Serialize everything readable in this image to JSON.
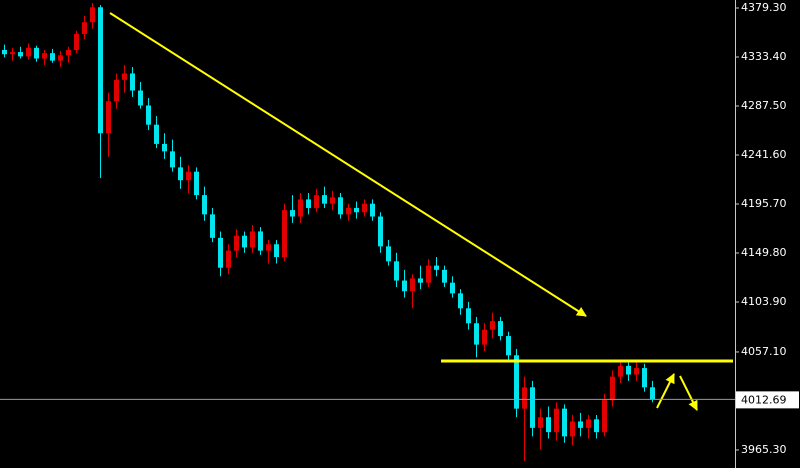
{
  "chart_data": {
    "type": "candlestick",
    "open": [
      4340,
      4336,
      4338,
      4334,
      4342,
      4332,
      4337,
      4330,
      4335,
      4340,
      4355,
      4366,
      4380,
      4262,
      4292,
      4312,
      4318,
      4302,
      4288,
      4270,
      4252,
      4245,
      4230,
      4218,
      4226,
      4204,
      4186,
      4164,
      4136,
      4152,
      4166,
      4155,
      4170,
      4152,
      4158,
      4146,
      4190,
      4184,
      4200,
      4192,
      4204,
      4196,
      4202,
      4186,
      4192,
      4188,
      4196,
      4184,
      4156,
      4142,
      4124,
      4114,
      4126,
      4122,
      4138,
      4134,
      4122,
      4112,
      4098,
      4084,
      4064,
      4078,
      4086,
      4072,
      4054,
      4004,
      4024,
      3986,
      3996,
      3982,
      4004,
      3978,
      3992,
      3986,
      3994,
      3982,
      4012,
      4034,
      4044,
      4036,
      4042,
      4024
    ],
    "high": [
      4345,
      4342,
      4343,
      4346,
      4344,
      4340,
      4341,
      4339,
      4343,
      4358,
      4372,
      4384,
      4382,
      4300,
      4318,
      4326,
      4324,
      4310,
      4295,
      4278,
      4262,
      4256,
      4240,
      4232,
      4230,
      4212,
      4192,
      4170,
      4158,
      4172,
      4170,
      4176,
      4174,
      4162,
      4162,
      4196,
      4204,
      4206,
      4206,
      4210,
      4212,
      4208,
      4206,
      4196,
      4198,
      4200,
      4200,
      4188,
      4162,
      4150,
      4134,
      4130,
      4138,
      4144,
      4146,
      4138,
      4128,
      4116,
      4104,
      4090,
      4084,
      4094,
      4090,
      4076,
      4060,
      4034,
      4030,
      4004,
      4006,
      4010,
      4008,
      3998,
      4000,
      3998,
      3998,
      4018,
      4040,
      4050,
      4050,
      4048,
      4046,
      4030
    ],
    "low": [
      4333,
      4330,
      4332,
      4331,
      4329,
      4326,
      4328,
      4324,
      4328,
      4337,
      4350,
      4360,
      4220,
      4240,
      4285,
      4300,
      4296,
      4285,
      4265,
      4248,
      4238,
      4226,
      4210,
      4206,
      4200,
      4180,
      4160,
      4128,
      4130,
      4146,
      4150,
      4150,
      4148,
      4140,
      4140,
      4142,
      4178,
      4178,
      4186,
      4188,
      4192,
      4190,
      4182,
      4180,
      4182,
      4184,
      4180,
      4150,
      4138,
      4118,
      4108,
      4098,
      4116,
      4118,
      4128,
      4118,
      4108,
      4092,
      4078,
      4052,
      4058,
      4070,
      4068,
      4048,
      3996,
      3955,
      3978,
      3966,
      3976,
      3974,
      3972,
      3970,
      3978,
      3976,
      3976,
      3978,
      4006,
      4028,
      4030,
      4030,
      4020,
      4010
    ],
    "close": [
      4336,
      4338,
      4334,
      4342,
      4332,
      4337,
      4330,
      4335,
      4340,
      4355,
      4366,
      4380,
      4262,
      4292,
      4312,
      4318,
      4302,
      4288,
      4270,
      4252,
      4245,
      4230,
      4218,
      4226,
      4204,
      4186,
      4164,
      4136,
      4152,
      4166,
      4155,
      4170,
      4152,
      4158,
      4146,
      4190,
      4184,
      4200,
      4192,
      4204,
      4196,
      4202,
      4186,
      4192,
      4188,
      4196,
      4184,
      4156,
      4142,
      4124,
      4114,
      4126,
      4122,
      4138,
      4134,
      4122,
      4112,
      4098,
      4084,
      4064,
      4078,
      4086,
      4072,
      4054,
      4004,
      4024,
      3986,
      3996,
      3982,
      4004,
      3978,
      3992,
      3986,
      3994,
      3982,
      4012,
      4034,
      4044,
      4036,
      4042,
      4024,
      4012.69
    ],
    "up_color": "#e00000",
    "down_color": "#00e5ee",
    "last_price": 4012.69,
    "ylim": [
      3948.4,
      4386.8
    ],
    "yticks": [
      {
        "value": 4379.3,
        "label": "4379.30"
      },
      {
        "value": 4333.4,
        "label": "4333.40"
      },
      {
        "value": 4287.5,
        "label": "4287.50"
      },
      {
        "value": 4241.6,
        "label": "4241.60"
      },
      {
        "value": 4195.7,
        "label": "4195.70"
      },
      {
        "value": 4149.8,
        "label": "4149.80"
      },
      {
        "value": 4103.9,
        "label": "4103.90"
      },
      {
        "value": 4057.1,
        "label": "4057.10"
      },
      {
        "value": 3965.3,
        "label": "3965.30"
      }
    ]
  }
}
